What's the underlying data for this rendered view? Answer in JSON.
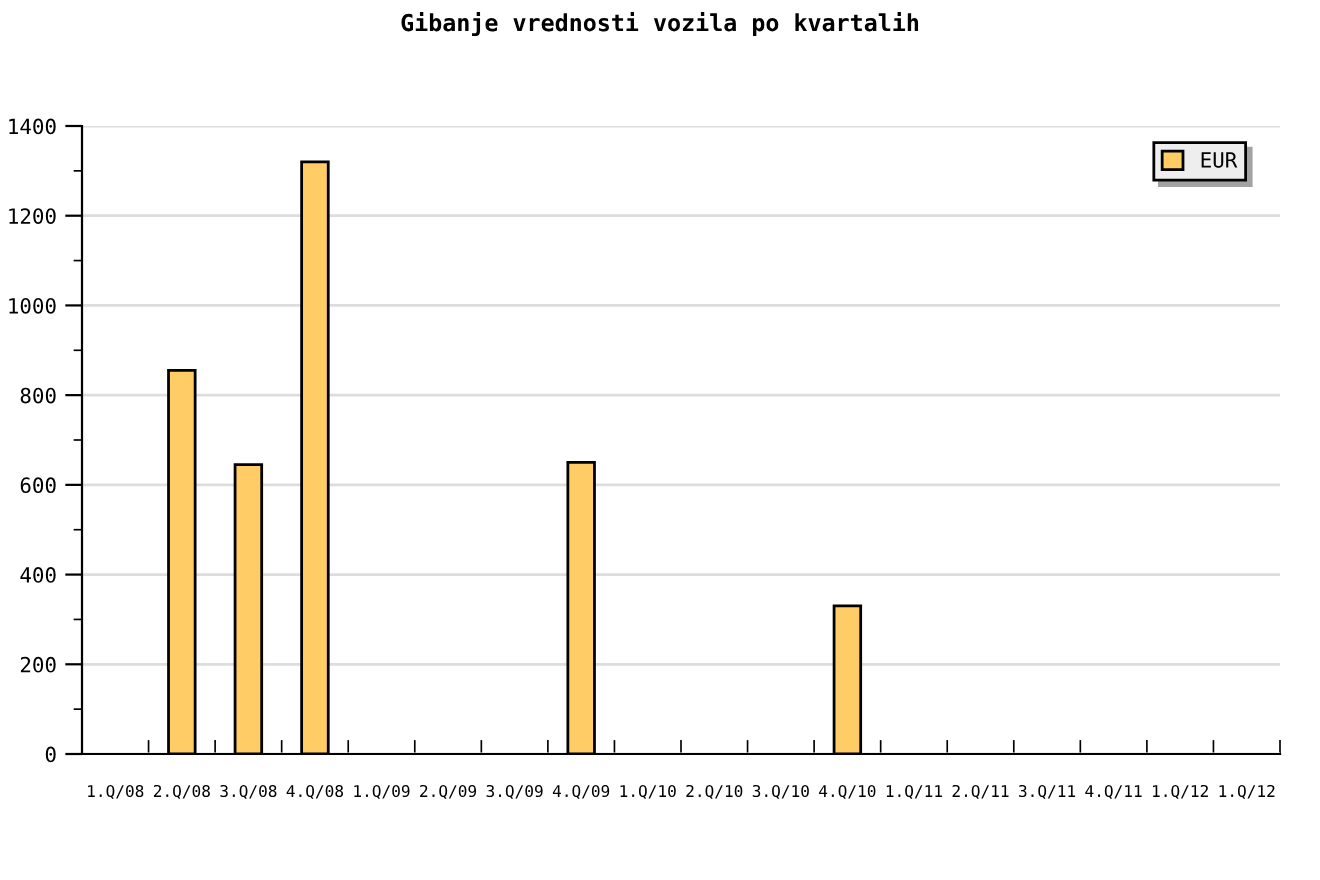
{
  "chart_data": {
    "type": "bar",
    "title": "Gibanje vrednosti vozila po kvartalih",
    "categories": [
      "1.Q/08",
      "2.Q/08",
      "3.Q/08",
      "4.Q/08",
      "1.Q/09",
      "2.Q/09",
      "3.Q/09",
      "4.Q/09",
      "1.Q/10",
      "2.Q/10",
      "3.Q/10",
      "4.Q/10",
      "1.Q/11",
      "2.Q/11",
      "3.Q/11",
      "4.Q/11",
      "1.Q/12",
      "1.Q/12"
    ],
    "series": [
      {
        "name": "EUR",
        "color": "#ffcc66",
        "values": [
          null,
          855,
          645,
          1320,
          null,
          null,
          null,
          650,
          null,
          null,
          null,
          330,
          null,
          null,
          null,
          null,
          null,
          null
        ]
      }
    ],
    "ylim": [
      0,
      1400
    ],
    "yticks": [
      0,
      {
        "value": 100,
        "label": null
      },
      200,
      {
        "value": 300,
        "label": null
      },
      400,
      {
        "value": 500,
        "label": null
      },
      600,
      {
        "value": 700,
        "label": null
      },
      800,
      {
        "value": 900,
        "label": null
      },
      1000,
      {
        "value": 1100,
        "label": null
      },
      1200,
      {
        "value": 1300,
        "label": null
      },
      1400
    ],
    "grid": "y",
    "legend": "top right"
  }
}
